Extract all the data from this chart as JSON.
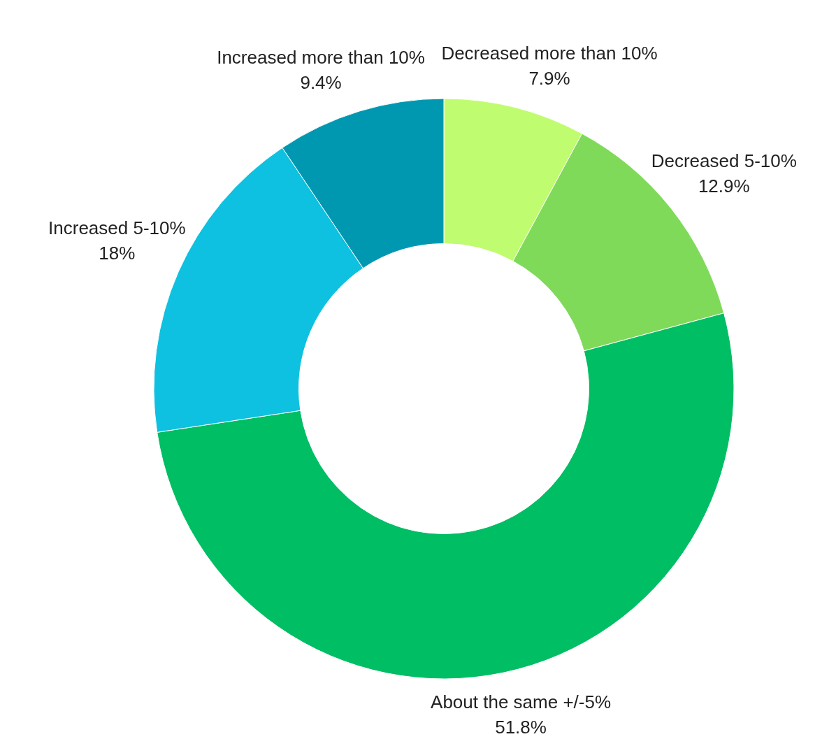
{
  "chart_data": {
    "type": "donut",
    "categories": [
      "Decreased more than 10%",
      "Decreased 5-10%",
      "About the same +/-5%",
      "Increased 5-10%",
      "Increased more than 10%"
    ],
    "values": [
      7.9,
      12.9,
      51.8,
      18,
      9.4
    ],
    "value_labels": [
      "7.9%",
      "12.9%",
      "51.8%",
      "18%",
      "9.4%"
    ],
    "colors": [
      "#c0fc70",
      "#80da5a",
      "#00be64",
      "#0ec1e0",
      "#0098b1"
    ],
    "legend": false
  }
}
